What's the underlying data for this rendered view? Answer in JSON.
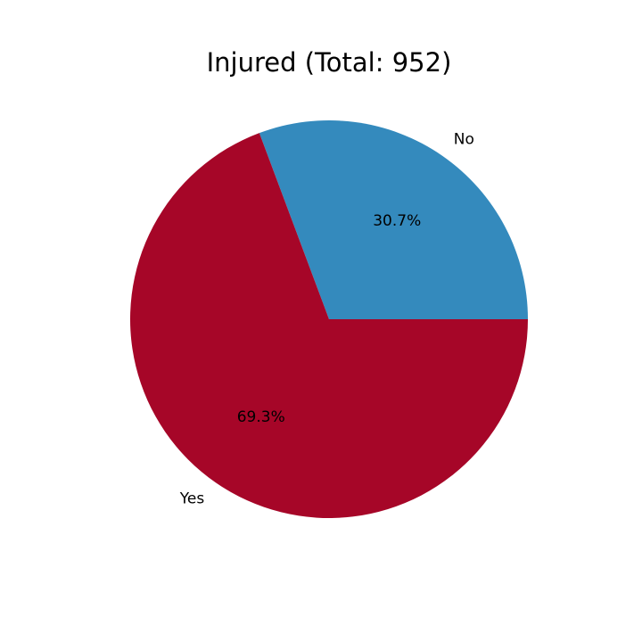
{
  "chart_data": {
    "type": "pie",
    "title": "Injured (Total: 952)",
    "slices": [
      {
        "label": "No",
        "value": 30.7,
        "pct_label": "30.7%",
        "color": "#348abd"
      },
      {
        "label": "Yes",
        "value": 69.3,
        "pct_label": "69.3%",
        "color": "#a60628"
      }
    ],
    "start_angle_deg": 0,
    "direction": "counterclockwise"
  }
}
